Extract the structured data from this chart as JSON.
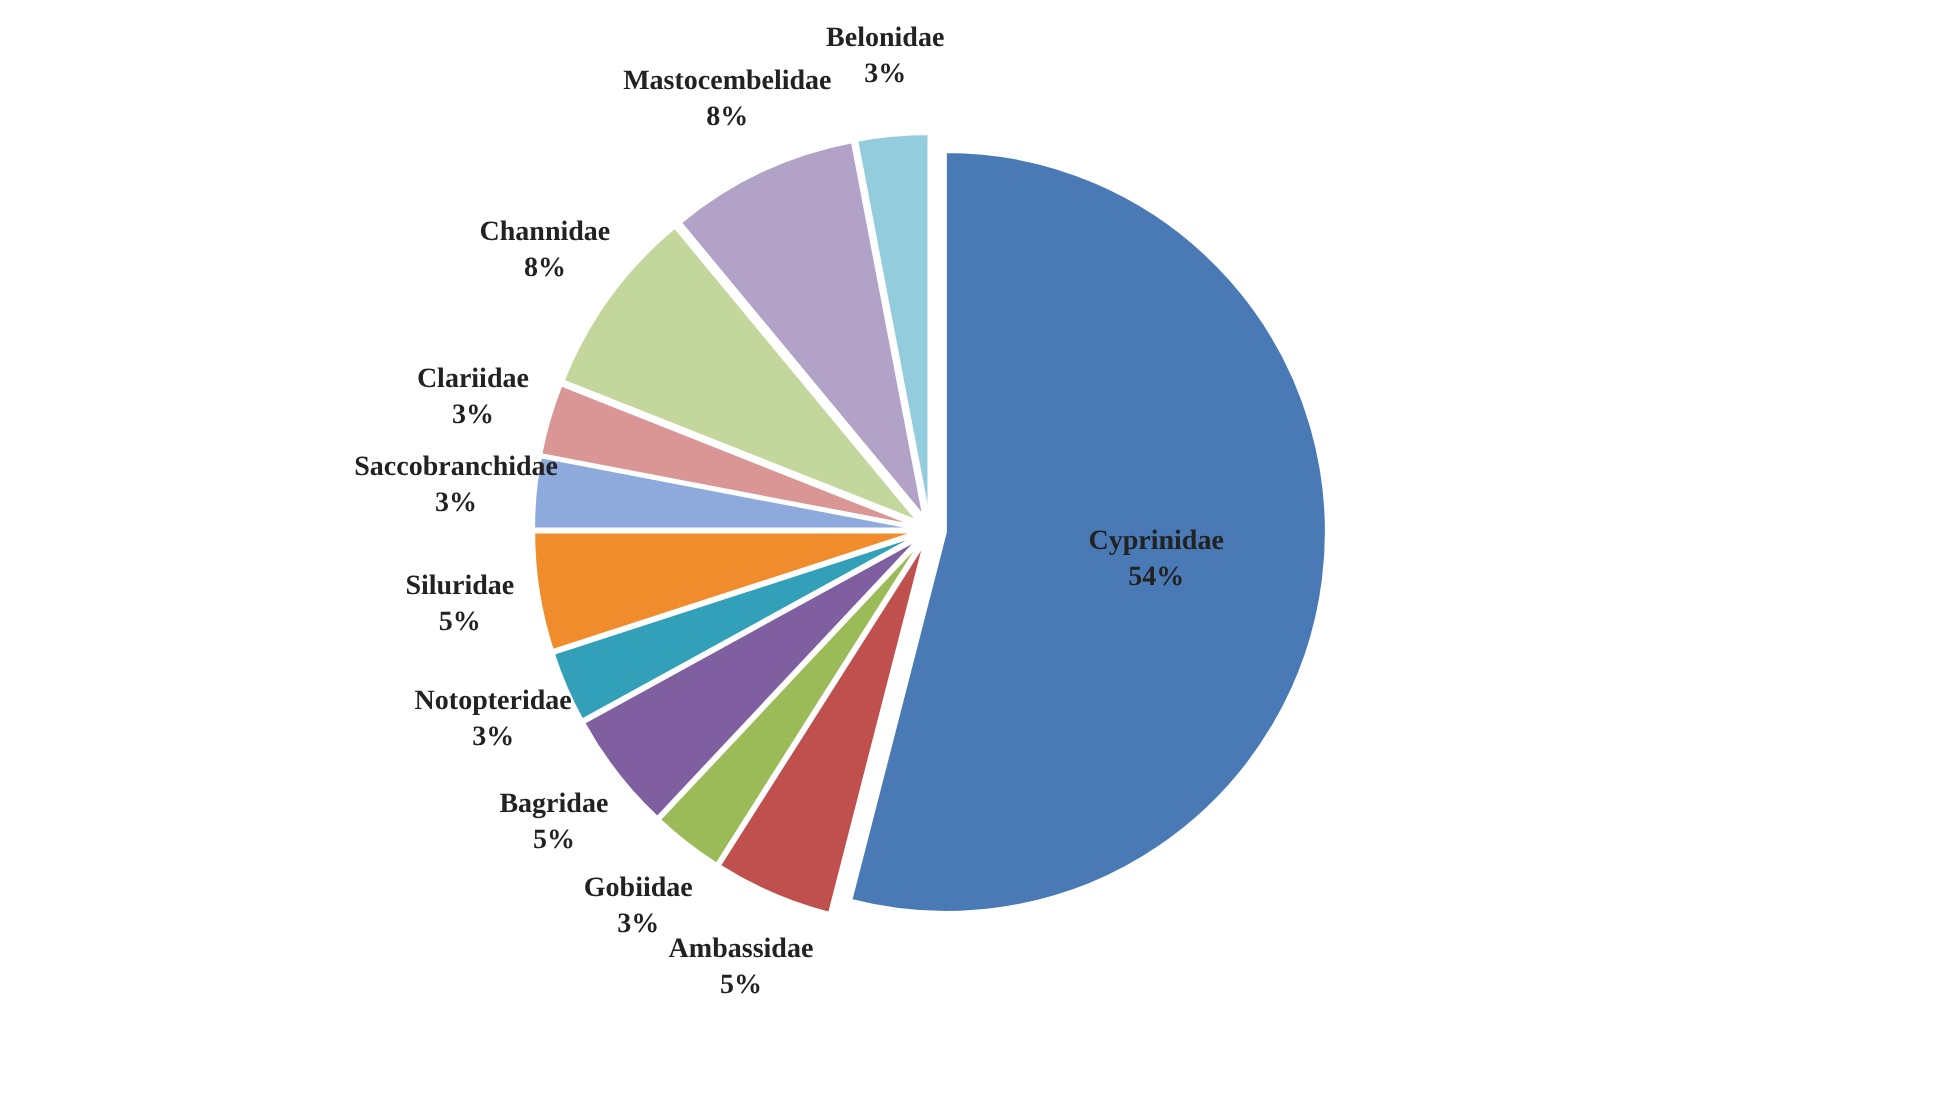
{
  "chart_data": {
    "type": "pie",
    "categories": [
      "Cyprinidae",
      "Ambassidae",
      "Gobiidae",
      "Bagridae",
      "Notopteridae",
      "Siluridae",
      "Saccobranchidae",
      "Clariidae",
      "Channidae",
      "Mastocembelidae",
      "Belonidae"
    ],
    "values": [
      54,
      5,
      3,
      5,
      3,
      5,
      3,
      3,
      8,
      8,
      3
    ],
    "value_labels": [
      "54%",
      "5%",
      "3%",
      "5%",
      "3%",
      "5%",
      "3%",
      "3%",
      "8%",
      "8%",
      "3%"
    ],
    "colors": [
      "#4a7ab5",
      "#c0504d",
      "#9bbb59",
      "#7f5fa0",
      "#31a0b8",
      "#f08c2c",
      "#8eaadc",
      "#d99694",
      "#c3d69b",
      "#b3a2c7",
      "#93cddd"
    ],
    "legend": false
  }
}
